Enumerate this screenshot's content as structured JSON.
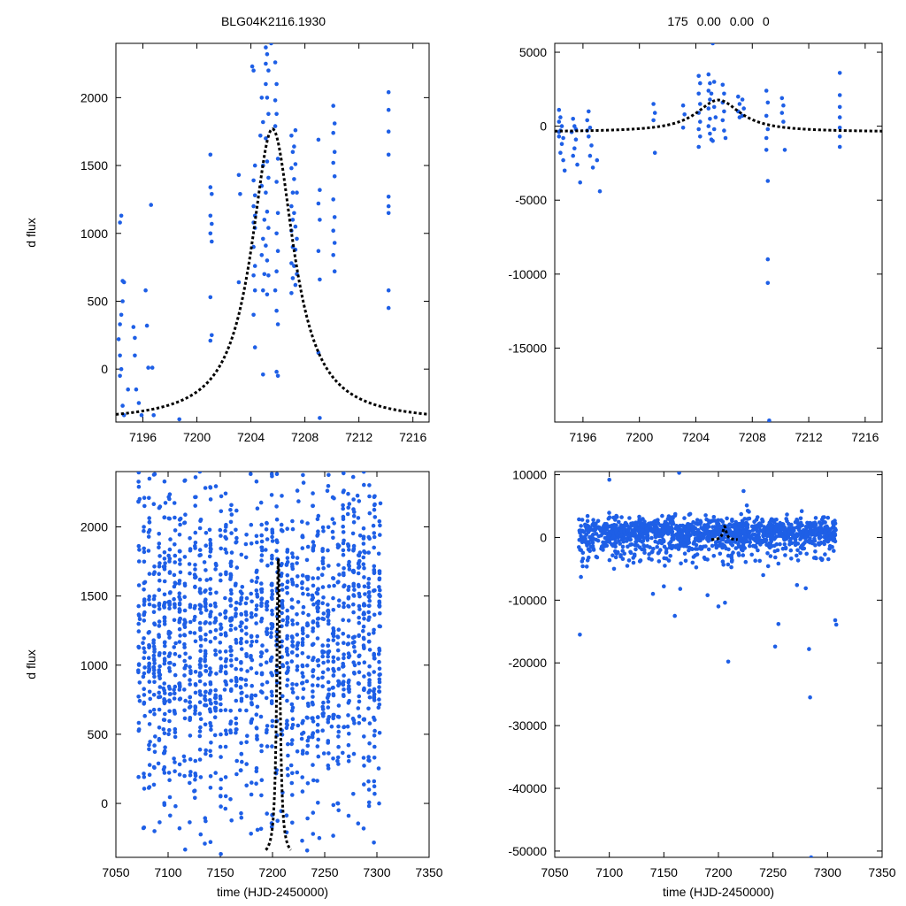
{
  "figure": {
    "title_left": "BLG04K2116.1930",
    "title_right": "175  0.00  0.00  0"
  },
  "chart_data": [
    {
      "type": "scatter",
      "panel": "top-left",
      "xlabel": "",
      "ylabel": "d flux",
      "xlim": [
        7194.0,
        7217.2
      ],
      "ylim": [
        -390,
        2400
      ],
      "xticks": [
        7196,
        7200,
        7204,
        7208,
        7212,
        7216
      ],
      "yticks": [
        0,
        500,
        1000,
        1500,
        2000
      ],
      "ytick_labels": [
        "0",
        "500",
        "1000",
        "1500",
        "2000"
      ],
      "model": {
        "t0": 7205.6,
        "peak": 1770,
        "base": -390,
        "tE": 1.9
      },
      "points": [
        [
          7194.3,
          1080
        ],
        [
          7194.4,
          1130
        ],
        [
          7194.5,
          650
        ],
        [
          7194.6,
          640
        ],
        [
          7194.5,
          500
        ],
        [
          7194.4,
          400
        ],
        [
          7194.3,
          330
        ],
        [
          7194.2,
          220
        ],
        [
          7194.3,
          100
        ],
        [
          7194.4,
          0
        ],
        [
          7194.3,
          -50
        ],
        [
          7194.5,
          -270
        ],
        [
          7194.6,
          -340
        ],
        [
          7194.9,
          -150
        ],
        [
          7195.3,
          310
        ],
        [
          7195.4,
          230
        ],
        [
          7195.4,
          100
        ],
        [
          7195.5,
          -150
        ],
        [
          7195.7,
          -250
        ],
        [
          7195.9,
          -340
        ],
        [
          7196.2,
          580
        ],
        [
          7196.3,
          320
        ],
        [
          7196.4,
          10
        ],
        [
          7196.6,
          1210
        ],
        [
          7196.7,
          10
        ],
        [
          7196.8,
          -340
        ],
        [
          7198.7,
          -370
        ],
        [
          7201.0,
          1580
        ],
        [
          7201.0,
          1340
        ],
        [
          7201.1,
          1290
        ],
        [
          7201.0,
          1130
        ],
        [
          7201.1,
          1070
        ],
        [
          7201.0,
          1000
        ],
        [
          7201.1,
          940
        ],
        [
          7201.0,
          530
        ],
        [
          7201.1,
          250
        ],
        [
          7201.0,
          210
        ],
        [
          7203.1,
          1430
        ],
        [
          7203.2,
          1290
        ],
        [
          7203.1,
          640
        ],
        [
          7204.1,
          2230
        ],
        [
          7204.2,
          2200
        ],
        [
          7204.3,
          1500
        ],
        [
          7204.2,
          1390
        ],
        [
          7204.3,
          1280
        ],
        [
          7204.2,
          1200
        ],
        [
          7204.3,
          1130
        ],
        [
          7204.2,
          1080
        ],
        [
          7204.3,
          1040
        ],
        [
          7204.2,
          900
        ],
        [
          7204.3,
          760
        ],
        [
          7204.2,
          690
        ],
        [
          7204.3,
          580
        ],
        [
          7204.2,
          400
        ],
        [
          7204.3,
          160
        ],
        [
          7204.8,
          2000
        ],
        [
          7204.9,
          1820
        ],
        [
          7204.7,
          1720
        ],
        [
          7204.9,
          1500
        ],
        [
          7204.8,
          1350
        ],
        [
          7205.0,
          1100
        ],
        [
          7204.9,
          960
        ],
        [
          7204.8,
          840
        ],
        [
          7205.0,
          700
        ],
        [
          7204.9,
          580
        ],
        [
          7204.9,
          -40
        ],
        [
          7205.1,
          2370
        ],
        [
          7205.2,
          2320
        ],
        [
          7205.1,
          2250
        ],
        [
          7205.3,
          2200
        ],
        [
          7205.1,
          2100
        ],
        [
          7205.2,
          2000
        ],
        [
          7205.3,
          1880
        ],
        [
          7205.1,
          1700
        ],
        [
          7205.2,
          1530
        ],
        [
          7205.3,
          1410
        ],
        [
          7205.1,
          1300
        ],
        [
          7205.2,
          1160
        ],
        [
          7205.3,
          1040
        ],
        [
          7205.1,
          910
        ],
        [
          7205.2,
          800
        ],
        [
          7205.3,
          690
        ],
        [
          7205.2,
          550
        ],
        [
          7205.5,
          2400
        ],
        [
          7205.8,
          2260
        ],
        [
          7205.9,
          2100
        ],
        [
          7205.8,
          1980
        ],
        [
          7205.9,
          1880
        ],
        [
          7205.8,
          1790
        ],
        [
          7206.0,
          1550
        ],
        [
          7205.9,
          1380
        ],
        [
          7206.0,
          1150
        ],
        [
          7205.9,
          1000
        ],
        [
          7206.0,
          870
        ],
        [
          7205.9,
          720
        ],
        [
          7205.8,
          580
        ],
        [
          7205.9,
          430
        ],
        [
          7206.0,
          330
        ],
        [
          7205.9,
          -20
        ],
        [
          7206.0,
          -50
        ],
        [
          7207.0,
          1720
        ],
        [
          7207.1,
          1600
        ],
        [
          7207.0,
          1480
        ],
        [
          7207.1,
          1300
        ],
        [
          7207.0,
          1200
        ],
        [
          7207.1,
          1100
        ],
        [
          7207.0,
          1020
        ],
        [
          7207.1,
          900
        ],
        [
          7207.0,
          780
        ],
        [
          7207.1,
          670
        ],
        [
          7207.0,
          560
        ],
        [
          7207.3,
          1760
        ],
        [
          7207.2,
          1640
        ],
        [
          7207.3,
          1510
        ],
        [
          7207.2,
          1400
        ],
        [
          7207.4,
          1300
        ],
        [
          7207.2,
          1150
        ],
        [
          7207.3,
          1050
        ],
        [
          7207.4,
          960
        ],
        [
          7207.3,
          880
        ],
        [
          7207.2,
          760
        ],
        [
          7207.4,
          700
        ],
        [
          7207.3,
          620
        ],
        [
          7209.0,
          1690
        ],
        [
          7209.1,
          1320
        ],
        [
          7209.0,
          1220
        ],
        [
          7209.1,
          1100
        ],
        [
          7209.0,
          870
        ],
        [
          7209.1,
          660
        ],
        [
          7209.0,
          120
        ],
        [
          7209.1,
          -360
        ],
        [
          7210.1,
          1940
        ],
        [
          7210.2,
          1810
        ],
        [
          7210.1,
          1740
        ],
        [
          7210.2,
          1600
        ],
        [
          7210.1,
          1520
        ],
        [
          7210.2,
          1420
        ],
        [
          7210.1,
          1250
        ],
        [
          7210.2,
          1120
        ],
        [
          7210.1,
          1020
        ],
        [
          7210.2,
          930
        ],
        [
          7210.1,
          840
        ],
        [
          7210.2,
          720
        ],
        [
          7214.2,
          2040
        ],
        [
          7214.2,
          1910
        ],
        [
          7214.2,
          1750
        ],
        [
          7214.2,
          1580
        ],
        [
          7214.2,
          1270
        ],
        [
          7214.2,
          1200
        ],
        [
          7214.2,
          1150
        ],
        [
          7214.2,
          580
        ],
        [
          7214.2,
          450
        ]
      ]
    },
    {
      "type": "scatter",
      "panel": "top-right",
      "xlabel": "",
      "ylabel": "",
      "xlim": [
        7194.0,
        7217.2
      ],
      "ylim": [
        -20000,
        5600
      ],
      "xticks": [
        7196,
        7200,
        7204,
        7208,
        7212,
        7216
      ],
      "yticks": [
        -15000,
        -10000,
        -5000,
        0,
        5000
      ],
      "ytick_labels": [
        "-15000",
        "-10000",
        "-5000",
        "0",
        "5000"
      ],
      "model": {
        "t0": 7205.6,
        "peak": 1770,
        "base": -390,
        "tE": 1.9
      },
      "points": [
        [
          7194.3,
          1100
        ],
        [
          7194.4,
          600
        ],
        [
          7194.3,
          300
        ],
        [
          7194.5,
          0
        ],
        [
          7194.4,
          -300
        ],
        [
          7194.3,
          -700
        ],
        [
          7194.5,
          -1200
        ],
        [
          7194.4,
          -1800
        ],
        [
          7194.6,
          -2300
        ],
        [
          7194.7,
          -3000
        ],
        [
          7194.3,
          -400
        ],
        [
          7194.6,
          -800
        ],
        [
          7195.3,
          500
        ],
        [
          7195.4,
          0
        ],
        [
          7195.2,
          -400
        ],
        [
          7195.5,
          -900
        ],
        [
          7195.4,
          -1500
        ],
        [
          7195.3,
          -2000
        ],
        [
          7195.6,
          -2600
        ],
        [
          7195.8,
          -3800
        ],
        [
          7195.5,
          -200
        ],
        [
          7196.4,
          1000
        ],
        [
          7196.3,
          400
        ],
        [
          7196.5,
          -100
        ],
        [
          7196.4,
          -700
        ],
        [
          7196.6,
          -1300
        ],
        [
          7196.5,
          -2000
        ],
        [
          7196.7,
          -2800
        ],
        [
          7197.0,
          -2300
        ],
        [
          7197.2,
          -4400
        ],
        [
          7196.3,
          -300
        ],
        [
          7201.0,
          1500
        ],
        [
          7201.1,
          900
        ],
        [
          7201.0,
          400
        ],
        [
          7201.1,
          -1800
        ],
        [
          7203.1,
          1400
        ],
        [
          7203.2,
          800
        ],
        [
          7203.1,
          -100
        ],
        [
          7204.2,
          3400
        ],
        [
          7204.3,
          2900
        ],
        [
          7204.2,
          2200
        ],
        [
          7204.3,
          1500
        ],
        [
          7204.2,
          900
        ],
        [
          7204.3,
          300
        ],
        [
          7204.2,
          -200
        ],
        [
          7204.3,
          -700
        ],
        [
          7204.2,
          -1400
        ],
        [
          7204.9,
          3500
        ],
        [
          7205.0,
          2900
        ],
        [
          7204.9,
          2400
        ],
        [
          7205.0,
          1800
        ],
        [
          7204.9,
          1200
        ],
        [
          7205.0,
          500
        ],
        [
          7204.9,
          0
        ],
        [
          7205.0,
          -500
        ],
        [
          7205.1,
          -900
        ],
        [
          7205.2,
          5600
        ],
        [
          7205.3,
          3000
        ],
        [
          7205.1,
          2200
        ],
        [
          7205.3,
          1300
        ],
        [
          7205.4,
          600
        ],
        [
          7205.3,
          -200
        ],
        [
          7205.2,
          -1000
        ],
        [
          7205.9,
          2800
        ],
        [
          7206.0,
          2200
        ],
        [
          7205.9,
          1600
        ],
        [
          7206.0,
          1000
        ],
        [
          7205.9,
          400
        ],
        [
          7206.0,
          -300
        ],
        [
          7206.1,
          -800
        ],
        [
          7207.0,
          2000
        ],
        [
          7207.1,
          1500
        ],
        [
          7207.0,
          1000
        ],
        [
          7207.1,
          600
        ],
        [
          7207.3,
          1800
        ],
        [
          7207.4,
          1200
        ],
        [
          7207.3,
          700
        ],
        [
          7209.0,
          2400
        ],
        [
          7209.1,
          1600
        ],
        [
          7209.0,
          700
        ],
        [
          7209.1,
          -200
        ],
        [
          7209.0,
          -800
        ],
        [
          7209.0,
          -1600
        ],
        [
          7209.1,
          -3700
        ],
        [
          7209.1,
          -9000
        ],
        [
          7209.1,
          -10600
        ],
        [
          7209.2,
          -19900
        ],
        [
          7210.1,
          1900
        ],
        [
          7210.2,
          1400
        ],
        [
          7210.1,
          900
        ],
        [
          7210.2,
          300
        ],
        [
          7210.3,
          -1600
        ],
        [
          7214.2,
          3600
        ],
        [
          7214.2,
          2100
        ],
        [
          7214.2,
          1300
        ],
        [
          7214.2,
          600
        ],
        [
          7214.2,
          -100
        ],
        [
          7214.2,
          -700
        ],
        [
          7214.2,
          -1400
        ]
      ]
    },
    {
      "type": "scatter",
      "panel": "bottom-left",
      "xlabel": "time (HJD-2450000)",
      "ylabel": "d flux",
      "xlim": [
        7050,
        7350
      ],
      "ylim": [
        -390,
        2400
      ],
      "xticks": [
        7050,
        7100,
        7150,
        7200,
        7250,
        7300,
        7350
      ],
      "yticks": [
        0,
        500,
        1000,
        1500,
        2000
      ],
      "ytick_labels": [
        "0",
        "500",
        "1000",
        "1500",
        "2000"
      ],
      "model": {
        "t0": 7205.6,
        "peak": 1770,
        "base": -390,
        "tE": 1.9
      },
      "seasons": [
        [
          7072,
          7308
        ]
      ],
      "pointCount": 1800
    },
    {
      "type": "scatter",
      "panel": "bottom-right",
      "xlabel": "time (HJD-2450000)",
      "ylabel": "",
      "xlim": [
        7050,
        7350
      ],
      "ylim": [
        -51000,
        10500
      ],
      "xticks": [
        7050,
        7100,
        7150,
        7200,
        7250,
        7300,
        7350
      ],
      "yticks": [
        -50000,
        -40000,
        -30000,
        -20000,
        -10000,
        0,
        10000
      ],
      "ytick_labels": [
        "-50000",
        "-40000",
        "-30000",
        "-20000",
        "-10000",
        "0",
        "10000"
      ],
      "model": {
        "t0": 7205.6,
        "peak": 1770,
        "base": -390,
        "tE": 1.9
      },
      "outliers": [
        [
          7073,
          -15500
        ],
        [
          7074,
          -6300
        ],
        [
          7075,
          -3800
        ],
        [
          7100,
          9200
        ],
        [
          7128,
          -3800
        ],
        [
          7140,
          -9000
        ],
        [
          7150,
          -7800
        ],
        [
          7160,
          -12500
        ],
        [
          7164,
          10300
        ],
        [
          7165,
          -8200
        ],
        [
          7190,
          -9200
        ],
        [
          7200,
          -11000
        ],
        [
          7206,
          -10400
        ],
        [
          7209,
          -19800
        ],
        [
          7223,
          7400
        ],
        [
          7226,
          5100
        ],
        [
          7228,
          4100
        ],
        [
          7241,
          -6000
        ],
        [
          7252,
          -17400
        ],
        [
          7255,
          -13800
        ],
        [
          7272,
          -7600
        ],
        [
          7280,
          -8100
        ],
        [
          7283,
          -17800
        ],
        [
          7284,
          -25500
        ],
        [
          7285,
          -51000
        ],
        [
          7307,
          -13200
        ],
        [
          7308,
          -13900
        ]
      ],
      "pointCount": 1400
    }
  ]
}
